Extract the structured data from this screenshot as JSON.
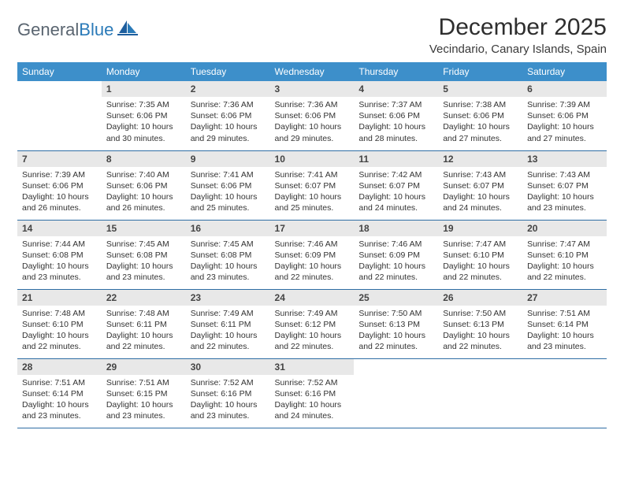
{
  "brand": {
    "name_a": "General",
    "name_b": "Blue"
  },
  "title": "December 2025",
  "location": "Vecindario, Canary Islands, Spain",
  "colors": {
    "header_bg": "#3d8fca",
    "header_text": "#ffffff",
    "daynum_bg": "#e8e8e8",
    "rule": "#2e6da4",
    "brand_gray": "#5a6570",
    "brand_blue": "#2a7ab8"
  },
  "dow": [
    "Sunday",
    "Monday",
    "Tuesday",
    "Wednesday",
    "Thursday",
    "Friday",
    "Saturday"
  ],
  "weeks": [
    [
      null,
      {
        "n": "1",
        "sr": "7:35 AM",
        "ss": "6:06 PM",
        "dl": "10 hours and 30 minutes."
      },
      {
        "n": "2",
        "sr": "7:36 AM",
        "ss": "6:06 PM",
        "dl": "10 hours and 29 minutes."
      },
      {
        "n": "3",
        "sr": "7:36 AM",
        "ss": "6:06 PM",
        "dl": "10 hours and 29 minutes."
      },
      {
        "n": "4",
        "sr": "7:37 AM",
        "ss": "6:06 PM",
        "dl": "10 hours and 28 minutes."
      },
      {
        "n": "5",
        "sr": "7:38 AM",
        "ss": "6:06 PM",
        "dl": "10 hours and 27 minutes."
      },
      {
        "n": "6",
        "sr": "7:39 AM",
        "ss": "6:06 PM",
        "dl": "10 hours and 27 minutes."
      }
    ],
    [
      {
        "n": "7",
        "sr": "7:39 AM",
        "ss": "6:06 PM",
        "dl": "10 hours and 26 minutes."
      },
      {
        "n": "8",
        "sr": "7:40 AM",
        "ss": "6:06 PM",
        "dl": "10 hours and 26 minutes."
      },
      {
        "n": "9",
        "sr": "7:41 AM",
        "ss": "6:06 PM",
        "dl": "10 hours and 25 minutes."
      },
      {
        "n": "10",
        "sr": "7:41 AM",
        "ss": "6:07 PM",
        "dl": "10 hours and 25 minutes."
      },
      {
        "n": "11",
        "sr": "7:42 AM",
        "ss": "6:07 PM",
        "dl": "10 hours and 24 minutes."
      },
      {
        "n": "12",
        "sr": "7:43 AM",
        "ss": "6:07 PM",
        "dl": "10 hours and 24 minutes."
      },
      {
        "n": "13",
        "sr": "7:43 AM",
        "ss": "6:07 PM",
        "dl": "10 hours and 23 minutes."
      }
    ],
    [
      {
        "n": "14",
        "sr": "7:44 AM",
        "ss": "6:08 PM",
        "dl": "10 hours and 23 minutes."
      },
      {
        "n": "15",
        "sr": "7:45 AM",
        "ss": "6:08 PM",
        "dl": "10 hours and 23 minutes."
      },
      {
        "n": "16",
        "sr": "7:45 AM",
        "ss": "6:08 PM",
        "dl": "10 hours and 23 minutes."
      },
      {
        "n": "17",
        "sr": "7:46 AM",
        "ss": "6:09 PM",
        "dl": "10 hours and 22 minutes."
      },
      {
        "n": "18",
        "sr": "7:46 AM",
        "ss": "6:09 PM",
        "dl": "10 hours and 22 minutes."
      },
      {
        "n": "19",
        "sr": "7:47 AM",
        "ss": "6:10 PM",
        "dl": "10 hours and 22 minutes."
      },
      {
        "n": "20",
        "sr": "7:47 AM",
        "ss": "6:10 PM",
        "dl": "10 hours and 22 minutes."
      }
    ],
    [
      {
        "n": "21",
        "sr": "7:48 AM",
        "ss": "6:10 PM",
        "dl": "10 hours and 22 minutes."
      },
      {
        "n": "22",
        "sr": "7:48 AM",
        "ss": "6:11 PM",
        "dl": "10 hours and 22 minutes."
      },
      {
        "n": "23",
        "sr": "7:49 AM",
        "ss": "6:11 PM",
        "dl": "10 hours and 22 minutes."
      },
      {
        "n": "24",
        "sr": "7:49 AM",
        "ss": "6:12 PM",
        "dl": "10 hours and 22 minutes."
      },
      {
        "n": "25",
        "sr": "7:50 AM",
        "ss": "6:13 PM",
        "dl": "10 hours and 22 minutes."
      },
      {
        "n": "26",
        "sr": "7:50 AM",
        "ss": "6:13 PM",
        "dl": "10 hours and 22 minutes."
      },
      {
        "n": "27",
        "sr": "7:51 AM",
        "ss": "6:14 PM",
        "dl": "10 hours and 23 minutes."
      }
    ],
    [
      {
        "n": "28",
        "sr": "7:51 AM",
        "ss": "6:14 PM",
        "dl": "10 hours and 23 minutes."
      },
      {
        "n": "29",
        "sr": "7:51 AM",
        "ss": "6:15 PM",
        "dl": "10 hours and 23 minutes."
      },
      {
        "n": "30",
        "sr": "7:52 AM",
        "ss": "6:16 PM",
        "dl": "10 hours and 23 minutes."
      },
      {
        "n": "31",
        "sr": "7:52 AM",
        "ss": "6:16 PM",
        "dl": "10 hours and 24 minutes."
      },
      null,
      null,
      null
    ]
  ],
  "labels": {
    "sunrise": "Sunrise:",
    "sunset": "Sunset:",
    "daylight": "Daylight:"
  }
}
